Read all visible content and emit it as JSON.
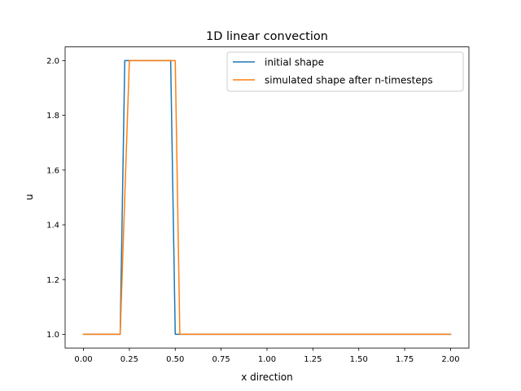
{
  "chart_data": {
    "type": "line",
    "title": "1D linear convection",
    "xlabel": "x direction",
    "ylabel": "u",
    "xlim": [
      -0.1,
      2.1
    ],
    "ylim": [
      0.95,
      2.05
    ],
    "xticks": [
      0.0,
      0.25,
      0.5,
      0.75,
      1.0,
      1.25,
      1.5,
      1.75,
      2.0
    ],
    "xtick_labels": [
      "0.00",
      "0.25",
      "0.50",
      "0.75",
      "1.00",
      "1.25",
      "1.50",
      "1.75",
      "2.00"
    ],
    "yticks": [
      1.0,
      1.2,
      1.4,
      1.6,
      1.8,
      2.0
    ],
    "ytick_labels": [
      "1.0",
      "1.2",
      "1.4",
      "1.6",
      "1.8",
      "2.0"
    ],
    "grid": false,
    "legend_position": "upper-right",
    "series": [
      {
        "name": "initial shape",
        "color": "#1f77b4",
        "x": [
          0.0,
          0.2,
          0.225,
          0.475,
          0.5,
          2.0
        ],
        "y": [
          1.0,
          1.0,
          2.0,
          2.0,
          1.0,
          1.0
        ]
      },
      {
        "name": "simulated shape after n-timesteps",
        "color": "#ff7f0e",
        "x": [
          0.0,
          0.2,
          0.25,
          0.5,
          0.525,
          2.0
        ],
        "y": [
          1.0,
          1.0,
          2.0,
          2.0,
          1.0,
          1.0
        ]
      }
    ]
  }
}
